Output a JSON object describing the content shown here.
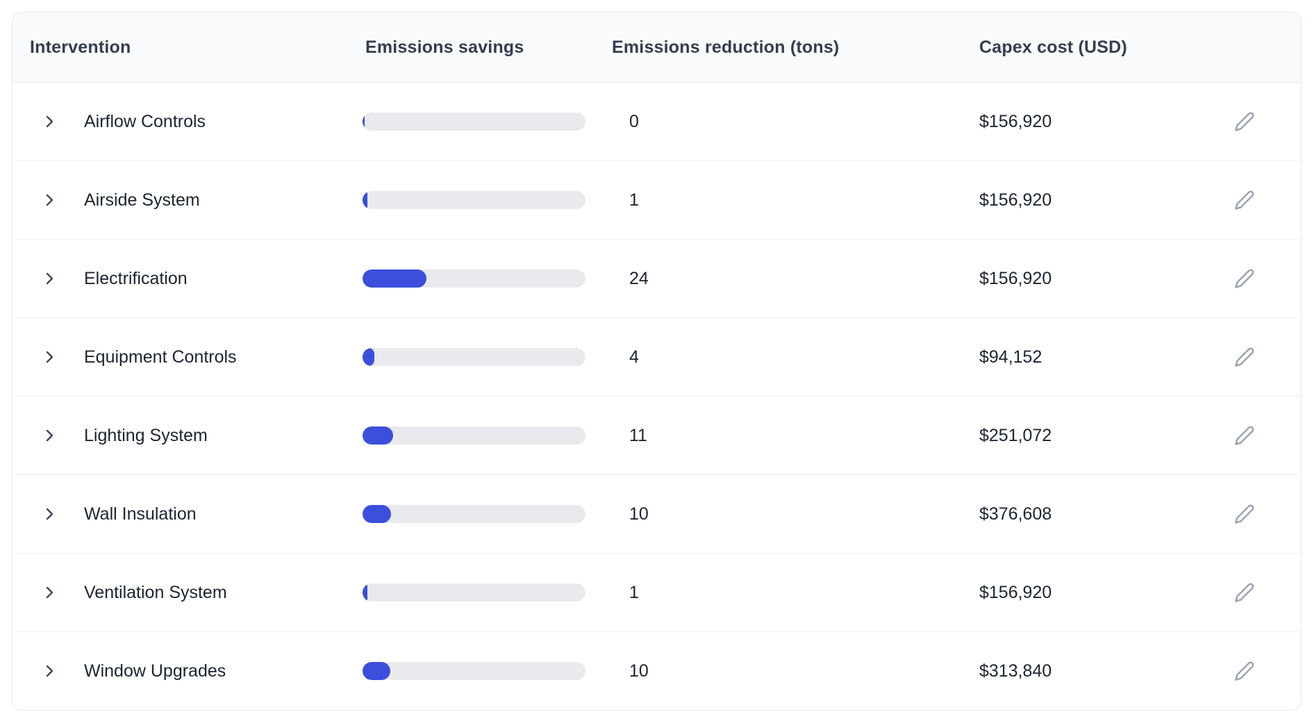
{
  "table": {
    "columns": {
      "intervention": "Intervention",
      "emissions_savings": "Emissions savings",
      "emissions_reduction": "Emissions reduction (tons)",
      "capex_cost": "Capex cost (USD)"
    },
    "rows": [
      {
        "name": "Airflow Controls",
        "bar_pct": 1,
        "tons": "0",
        "capex": "$156,920"
      },
      {
        "name": "Airside System",
        "bar_pct": 2.2,
        "tons": "1",
        "capex": "$156,920"
      },
      {
        "name": "Electrification",
        "bar_pct": 28.7,
        "tons": "24",
        "capex": "$156,920"
      },
      {
        "name": "Equipment Controls",
        "bar_pct": 5.3,
        "tons": "4",
        "capex": "$94,152"
      },
      {
        "name": "Lighting System",
        "bar_pct": 13.7,
        "tons": "11",
        "capex": "$251,072"
      },
      {
        "name": "Wall Insulation",
        "bar_pct": 12.8,
        "tons": "10",
        "capex": "$376,608"
      },
      {
        "name": "Ventilation System",
        "bar_pct": 2.2,
        "tons": "1",
        "capex": "$156,920"
      },
      {
        "name": "Window Upgrades",
        "bar_pct": 12.5,
        "tons": "10",
        "capex": "$313,840"
      }
    ],
    "icons": {
      "expand": "chevron-right",
      "edit": "pencil"
    },
    "colors": {
      "bar_fill": "#3b4edc",
      "bar_track": "#e9eaee",
      "header_bg": "#f8fafc",
      "card_border": "#e6e9ef",
      "header_text": "#333e4f",
      "body_text": "#1b2433",
      "edit_icon": "#9aa4b2"
    }
  }
}
